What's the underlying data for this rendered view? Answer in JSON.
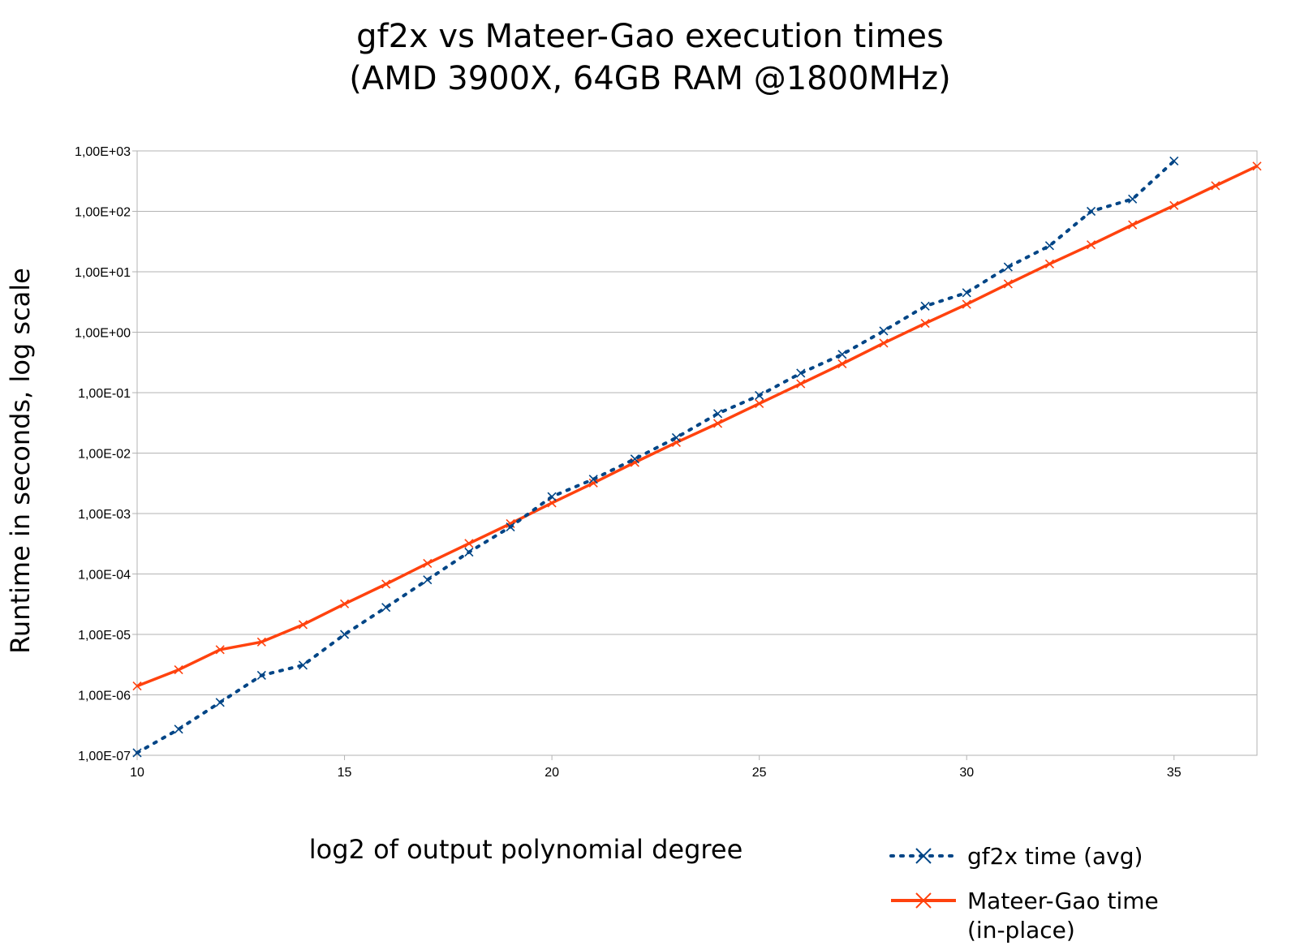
{
  "chart_data": {
    "type": "line",
    "title": [
      "gf2x vs Mateer-Gao execution times",
      "(AMD 3900X, 64GB RAM @1800MHz)"
    ],
    "xlabel": "log2 of output polynomial degree",
    "ylabel": "Runtime in seconds, log scale",
    "xlim": [
      10,
      37
    ],
    "ylim": [
      1e-07,
      1000
    ],
    "yscale": "log",
    "xticks": [
      10,
      15,
      20,
      25,
      30,
      35
    ],
    "xtick_labels": [
      "10",
      "15",
      "20",
      "25",
      "30",
      "35"
    ],
    "yticks": [
      1000.0,
      100.0,
      10.0,
      1.0,
      0.1,
      0.01,
      0.001,
      0.0001,
      1e-05,
      1e-06,
      1e-07
    ],
    "ytick_labels": [
      "1,00E+03",
      "1,00E+02",
      "1,00E+01",
      "1,00E+00",
      "1,00E-01",
      "1,00E-02",
      "1,00E-03",
      "1,00E-04",
      "1,00E-05",
      "1,00E-06",
      "1,00E-07"
    ],
    "grid": "horizontal",
    "legend_position": "bottom-right",
    "series": [
      {
        "name": "gf2x time (avg)",
        "color": "#004586",
        "line_style": "dotted",
        "marker": "x",
        "x": [
          10,
          11,
          12,
          13,
          14,
          15,
          16,
          17,
          18,
          19,
          20,
          21,
          22,
          23,
          24,
          25,
          26,
          27,
          28,
          29,
          30,
          31,
          32,
          33,
          34,
          35
        ],
        "y": [
          1.1e-07,
          2.7e-07,
          7.5e-07,
          2.1e-06,
          3.1e-06,
          1e-05,
          2.8e-05,
          8e-05,
          0.00023,
          0.0006,
          0.0019,
          0.0037,
          0.008,
          0.018,
          0.045,
          0.09,
          0.21,
          0.43,
          1.05,
          2.7,
          4.5,
          12,
          27,
          100,
          160,
          680
        ]
      },
      {
        "name": "Mateer-Gao time (in-place)",
        "name_lines": [
          "Mateer-Gao time",
          "(in-place)"
        ],
        "color": "#ff420e",
        "line_style": "solid",
        "marker": "x",
        "x": [
          10,
          11,
          12,
          13,
          14,
          15,
          16,
          17,
          18,
          19,
          20,
          21,
          22,
          23,
          24,
          25,
          26,
          27,
          28,
          29,
          30,
          31,
          32,
          33,
          34,
          35,
          36,
          37
        ],
        "y": [
          1.4e-06,
          2.6e-06,
          5.6e-06,
          7.5e-06,
          1.45e-05,
          3.2e-05,
          6.8e-05,
          0.00015,
          0.00032,
          0.00068,
          0.0015,
          0.0032,
          0.007,
          0.015,
          0.031,
          0.066,
          0.14,
          0.3,
          0.66,
          1.4,
          2.9,
          6.3,
          13.5,
          28,
          60,
          125,
          265,
          560
        ]
      }
    ]
  }
}
